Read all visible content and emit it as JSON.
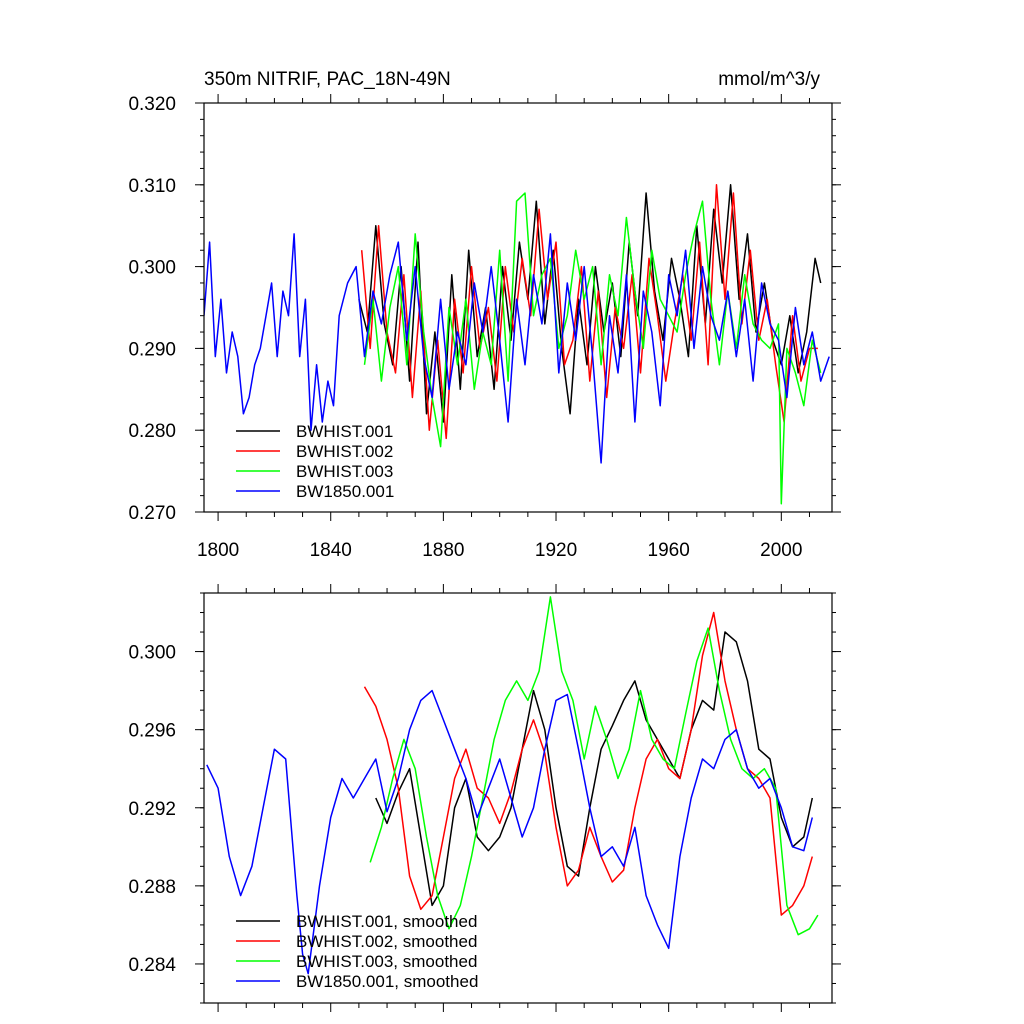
{
  "chart_data": [
    {
      "type": "line",
      "title": "350m NITRIF, PAC_18N-49N",
      "units": "mmol/m^3/y",
      "xlim": [
        1795,
        2018
      ],
      "ylim": [
        0.27,
        0.32
      ],
      "xticks": [
        1800,
        1840,
        1880,
        1920,
        1960,
        2000
      ],
      "yticks": [
        0.27,
        0.28,
        0.29,
        0.3,
        0.31,
        0.32
      ],
      "ytick_labels": [
        "0.270",
        "0.280",
        "0.290",
        "0.300",
        "0.310",
        "0.320"
      ],
      "legend_position": "bottom-left",
      "series": [
        {
          "name": "BWHIST.001",
          "color": "#000000",
          "x": [
            1850,
            1853,
            1856,
            1859,
            1862,
            1865,
            1868,
            1871,
            1874,
            1877,
            1880,
            1883,
            1886,
            1889,
            1892,
            1895,
            1898,
            1901,
            1904,
            1907,
            1910,
            1913,
            1916,
            1919,
            1922,
            1925,
            1928,
            1931,
            1934,
            1937,
            1940,
            1943,
            1946,
            1949,
            1952,
            1955,
            1958,
            1961,
            1964,
            1967,
            1970,
            1973,
            1976,
            1979,
            1982,
            1985,
            1988,
            1991,
            1994,
            1997,
            2000,
            2003,
            2006,
            2009,
            2012,
            2014
          ],
          "y": [
            0.296,
            0.292,
            0.305,
            0.293,
            0.288,
            0.3,
            0.286,
            0.303,
            0.282,
            0.292,
            0.281,
            0.299,
            0.285,
            0.302,
            0.289,
            0.295,
            0.285,
            0.3,
            0.291,
            0.303,
            0.296,
            0.308,
            0.293,
            0.302,
            0.29,
            0.282,
            0.296,
            0.288,
            0.3,
            0.292,
            0.298,
            0.289,
            0.303,
            0.294,
            0.309,
            0.297,
            0.291,
            0.301,
            0.296,
            0.289,
            0.305,
            0.293,
            0.307,
            0.298,
            0.31,
            0.296,
            0.304,
            0.292,
            0.298,
            0.291,
            0.288,
            0.294,
            0.287,
            0.292,
            0.301,
            0.298
          ]
        },
        {
          "name": "BWHIST.002",
          "color": "#ff0000",
          "x": [
            1851,
            1854,
            1857,
            1860,
            1863,
            1866,
            1869,
            1872,
            1875,
            1878,
            1881,
            1884,
            1887,
            1890,
            1893,
            1896,
            1899,
            1902,
            1905,
            1908,
            1911,
            1914,
            1917,
            1920,
            1923,
            1926,
            1929,
            1932,
            1935,
            1938,
            1941,
            1944,
            1947,
            1950,
            1953,
            1956,
            1959,
            1962,
            1965,
            1968,
            1971,
            1974,
            1977,
            1980,
            1983,
            1986,
            1989,
            1992,
            1995,
            1998,
            2001,
            2004,
            2007,
            2010,
            2013
          ],
          "y": [
            0.302,
            0.29,
            0.305,
            0.292,
            0.287,
            0.299,
            0.284,
            0.297,
            0.28,
            0.291,
            0.279,
            0.296,
            0.287,
            0.3,
            0.29,
            0.295,
            0.286,
            0.3,
            0.292,
            0.301,
            0.294,
            0.307,
            0.296,
            0.303,
            0.288,
            0.291,
            0.3,
            0.286,
            0.297,
            0.284,
            0.295,
            0.29,
            0.299,
            0.287,
            0.301,
            0.294,
            0.286,
            0.293,
            0.299,
            0.291,
            0.303,
            0.288,
            0.31,
            0.296,
            0.309,
            0.293,
            0.302,
            0.291,
            0.296,
            0.288,
            0.281,
            0.294,
            0.286,
            0.29,
            0.29
          ]
        },
        {
          "name": "BWHIST.003",
          "color": "#00ff00",
          "x": [
            1852,
            1855,
            1858,
            1861,
            1864,
            1867,
            1870,
            1873,
            1876,
            1879,
            1882,
            1885,
            1888,
            1891,
            1894,
            1897,
            1900,
            1903,
            1906,
            1909,
            1912,
            1915,
            1918,
            1921,
            1924,
            1927,
            1930,
            1933,
            1936,
            1939,
            1942,
            1945,
            1948,
            1951,
            1954,
            1957,
            1960,
            1963,
            1966,
            1969,
            1972,
            1975,
            1978,
            1981,
            1984,
            1987,
            1990,
            1993,
            1996,
            1999,
            2000,
            2002,
            2005,
            2008,
            2011,
            2014
          ],
          "y": [
            0.288,
            0.296,
            0.286,
            0.295,
            0.3,
            0.288,
            0.304,
            0.292,
            0.284,
            0.278,
            0.295,
            0.288,
            0.296,
            0.285,
            0.292,
            0.288,
            0.302,
            0.286,
            0.308,
            0.309,
            0.294,
            0.299,
            0.301,
            0.29,
            0.294,
            0.302,
            0.296,
            0.3,
            0.288,
            0.299,
            0.294,
            0.306,
            0.297,
            0.29,
            0.302,
            0.296,
            0.294,
            0.292,
            0.299,
            0.304,
            0.308,
            0.296,
            0.288,
            0.297,
            0.29,
            0.299,
            0.293,
            0.291,
            0.29,
            0.293,
            0.271,
            0.29,
            0.287,
            0.283,
            0.291,
            0.287
          ]
        },
        {
          "name": "BW1850.001",
          "color": "#0000ff",
          "x": [
            1795,
            1797,
            1799,
            1801,
            1803,
            1805,
            1807,
            1809,
            1811,
            1813,
            1815,
            1817,
            1819,
            1821,
            1823,
            1825,
            1827,
            1829,
            1831,
            1833,
            1835,
            1837,
            1839,
            1841,
            1843,
            1846,
            1849,
            1852,
            1855,
            1858,
            1861,
            1864,
            1867,
            1870,
            1873,
            1876,
            1879,
            1882,
            1885,
            1888,
            1891,
            1894,
            1897,
            1900,
            1903,
            1906,
            1909,
            1912,
            1915,
            1918,
            1921,
            1924,
            1927,
            1930,
            1933,
            1936,
            1939,
            1942,
            1945,
            1948,
            1951,
            1954,
            1957,
            1960,
            1963,
            1966,
            1969,
            1972,
            1975,
            1978,
            1981,
            1984,
            1987,
            1990,
            1993,
            1996,
            1999,
            2002,
            2005,
            2008,
            2011,
            2014,
            2017
          ],
          "y": [
            0.294,
            0.303,
            0.289,
            0.296,
            0.287,
            0.292,
            0.289,
            0.282,
            0.284,
            0.288,
            0.29,
            0.294,
            0.298,
            0.289,
            0.297,
            0.294,
            0.304,
            0.289,
            0.296,
            0.28,
            0.288,
            0.281,
            0.286,
            0.283,
            0.294,
            0.298,
            0.3,
            0.289,
            0.297,
            0.293,
            0.299,
            0.303,
            0.291,
            0.3,
            0.289,
            0.284,
            0.296,
            0.285,
            0.292,
            0.288,
            0.298,
            0.292,
            0.3,
            0.291,
            0.281,
            0.296,
            0.288,
            0.299,
            0.293,
            0.304,
            0.287,
            0.298,
            0.291,
            0.3,
            0.289,
            0.276,
            0.294,
            0.287,
            0.299,
            0.281,
            0.297,
            0.292,
            0.283,
            0.299,
            0.294,
            0.302,
            0.29,
            0.3,
            0.294,
            0.291,
            0.297,
            0.289,
            0.296,
            0.286,
            0.298,
            0.293,
            0.291,
            0.284,
            0.295,
            0.288,
            0.292,
            0.286,
            0.289
          ]
        }
      ]
    },
    {
      "type": "line",
      "xlim": [
        1795,
        2018
      ],
      "ylim": [
        0.282,
        0.303
      ],
      "xticks": [
        1800,
        1840,
        1880,
        1920,
        1960,
        2000
      ],
      "yticks": [
        0.284,
        0.288,
        0.292,
        0.296,
        0.3
      ],
      "ytick_labels": [
        "0.284",
        "0.288",
        "0.292",
        "0.296",
        "0.300"
      ],
      "legend_position": "bottom-left",
      "series": [
        {
          "name": "BWHIST.001, smoothed",
          "color": "#000000",
          "x": [
            1856,
            1860,
            1864,
            1868,
            1872,
            1876,
            1880,
            1884,
            1888,
            1892,
            1896,
            1900,
            1904,
            1908,
            1912,
            1916,
            1920,
            1924,
            1928,
            1932,
            1936,
            1940,
            1944,
            1948,
            1952,
            1956,
            1960,
            1964,
            1968,
            1972,
            1976,
            1980,
            1984,
            1988,
            1992,
            1996,
            2000,
            2004,
            2008,
            2011
          ],
          "y": [
            0.2925,
            0.2912,
            0.2928,
            0.294,
            0.2905,
            0.287,
            0.288,
            0.292,
            0.2935,
            0.2905,
            0.2898,
            0.2905,
            0.292,
            0.295,
            0.298,
            0.296,
            0.292,
            0.289,
            0.2885,
            0.292,
            0.295,
            0.2962,
            0.2975,
            0.2985,
            0.2965,
            0.2955,
            0.2945,
            0.2935,
            0.296,
            0.2975,
            0.297,
            0.301,
            0.3005,
            0.2985,
            0.295,
            0.2945,
            0.2915,
            0.29,
            0.2905,
            0.2925
          ]
        },
        {
          "name": "BWHIST.002, smoothed",
          "color": "#ff0000",
          "x": [
            1852,
            1856,
            1860,
            1864,
            1868,
            1872,
            1876,
            1880,
            1884,
            1888,
            1892,
            1896,
            1900,
            1904,
            1908,
            1912,
            1916,
            1920,
            1924,
            1928,
            1932,
            1936,
            1940,
            1944,
            1948,
            1952,
            1956,
            1960,
            1964,
            1968,
            1972,
            1976,
            1980,
            1984,
            1988,
            1992,
            1996,
            2000,
            2004,
            2008,
            2011
          ],
          "y": [
            0.2982,
            0.2972,
            0.2955,
            0.293,
            0.2885,
            0.2868,
            0.2875,
            0.2905,
            0.2935,
            0.295,
            0.293,
            0.2925,
            0.2912,
            0.2928,
            0.295,
            0.2965,
            0.2948,
            0.291,
            0.288,
            0.2888,
            0.291,
            0.2895,
            0.2882,
            0.2888,
            0.292,
            0.2945,
            0.2955,
            0.294,
            0.2935,
            0.296,
            0.2998,
            0.302,
            0.2985,
            0.296,
            0.294,
            0.2935,
            0.2925,
            0.2865,
            0.287,
            0.288,
            0.2895
          ]
        },
        {
          "name": "BWHIST.003, smoothed",
          "color": "#00ff00",
          "x": [
            1854,
            1858,
            1862,
            1866,
            1870,
            1874,
            1878,
            1882,
            1886,
            1890,
            1894,
            1898,
            1902,
            1906,
            1910,
            1914,
            1918,
            1922,
            1926,
            1930,
            1934,
            1938,
            1942,
            1946,
            1950,
            1954,
            1958,
            1962,
            1966,
            1970,
            1974,
            1978,
            1982,
            1986,
            1990,
            1994,
            1998,
            2002,
            2006,
            2010,
            2013
          ],
          "y": [
            0.2892,
            0.291,
            0.2935,
            0.2955,
            0.294,
            0.2905,
            0.2875,
            0.2858,
            0.287,
            0.2895,
            0.2925,
            0.2955,
            0.2975,
            0.2985,
            0.2975,
            0.299,
            0.3028,
            0.299,
            0.2975,
            0.2945,
            0.2972,
            0.2955,
            0.2935,
            0.295,
            0.298,
            0.2955,
            0.2945,
            0.294,
            0.2968,
            0.2995,
            0.3012,
            0.298,
            0.2955,
            0.294,
            0.2935,
            0.294,
            0.293,
            0.287,
            0.2855,
            0.2858,
            0.2865
          ]
        },
        {
          "name": "BW1850.001, smoothed",
          "color": "#0000ff",
          "x": [
            1796,
            1800,
            1804,
            1808,
            1812,
            1816,
            1820,
            1824,
            1828,
            1830,
            1832,
            1836,
            1840,
            1844,
            1848,
            1852,
            1856,
            1860,
            1864,
            1868,
            1872,
            1876,
            1880,
            1884,
            1888,
            1892,
            1896,
            1900,
            1904,
            1908,
            1912,
            1916,
            1920,
            1924,
            1928,
            1932,
            1936,
            1940,
            1944,
            1948,
            1952,
            1956,
            1960,
            1964,
            1968,
            1972,
            1976,
            1980,
            1984,
            1988,
            1992,
            1996,
            2000,
            2004,
            2008,
            2011
          ],
          "y": [
            0.2942,
            0.293,
            0.2895,
            0.2875,
            0.289,
            0.292,
            0.295,
            0.2945,
            0.2875,
            0.2845,
            0.2835,
            0.288,
            0.2915,
            0.2935,
            0.2925,
            0.2935,
            0.2945,
            0.2918,
            0.2935,
            0.296,
            0.2975,
            0.298,
            0.2965,
            0.295,
            0.2935,
            0.2915,
            0.293,
            0.2945,
            0.2925,
            0.2905,
            0.292,
            0.295,
            0.2975,
            0.2978,
            0.295,
            0.292,
            0.2895,
            0.29,
            0.289,
            0.291,
            0.2875,
            0.286,
            0.2848,
            0.2895,
            0.2925,
            0.2945,
            0.294,
            0.2955,
            0.296,
            0.294,
            0.293,
            0.2935,
            0.292,
            0.29,
            0.2898,
            0.2915
          ]
        }
      ]
    }
  ]
}
